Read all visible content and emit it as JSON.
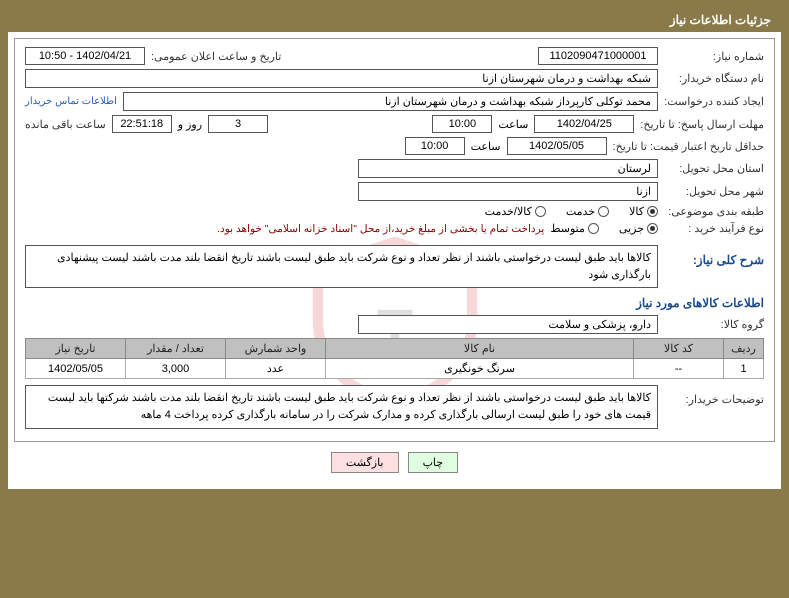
{
  "title": "جزئیات اطلاعات نیاز",
  "labels": {
    "need_no": "شماره نیاز:",
    "announce": "تاریخ و ساعت اعلان عمومی:",
    "buyer": "نام دستگاه خریدار:",
    "creator": "ایجاد کننده درخواست:",
    "contact": "اطلاعات تماس خریدار",
    "deadline": "مهلت ارسال پاسخ: تا تاریخ:",
    "hour": "ساعت",
    "day_and": "روز و",
    "remain": "ساعت باقی مانده",
    "validity": "حداقل تاریخ اعتبار قیمت: تا تاریخ:",
    "province": "استان محل تحویل:",
    "city": "شهر محل تحویل:",
    "category": "طبقه بندی موضوعی:",
    "process": "نوع فرآیند خرید :",
    "desc_title": "شرح کلی نیاز:",
    "items_title": "اطلاعات کالاهای مورد نیاز",
    "group": "گروه کالا:",
    "buyer_note": "توضیحات خریدار:"
  },
  "values": {
    "need_no": "1102090471000001",
    "announce": "1402/04/21 - 10:50",
    "buyer": "شبکه بهداشت و درمان شهرستان ازنا",
    "creator": "محمد توکلی کارپرداز شبکه بهداشت و درمان شهرستان ازنا",
    "deadline_date": "1402/04/25",
    "deadline_time": "10:00",
    "days": "3",
    "countdown": "22:51:18",
    "validity_date": "1402/05/05",
    "validity_time": "10:00",
    "province": "لرستان",
    "city": "ازنا",
    "group": "دارو، پزشکی و سلامت",
    "desc": "کالاها باید طبق لیست درخواستی باشند از نظر تعداد و نوع شرکت باید طبق لیست باشند تاریخ انقضا بلند مدت باشند لیست پیشنهادی بارگذاری شود",
    "buyer_note": "کالاها باید طبق لیست درخواستی باشند از نظر تعداد و نوع شرکت باید طبق لیست باشند تاریخ انقضا بلند مدت باشند شرکتها باید لیست قیمت های خود را طبق لیست ارسالی بارگذاری کرده و مدارک شرکت را در سامانه بارگذاری کرده پرداخت 4 ماهه"
  },
  "radios": {
    "cat": {
      "goods": "کالا",
      "service": "خدمت",
      "both": "کالا/خدمت"
    },
    "proc": {
      "partial": "جزیی",
      "medium": "متوسط",
      "note": "پرداخت تمام یا بخشی از مبلغ خرید،از محل \"اسناد خزانه اسلامی\" خواهد بود."
    }
  },
  "table": {
    "headers": {
      "row": "ردیف",
      "code": "کد کالا",
      "name": "نام کالا",
      "unit": "واحد شمارش",
      "qty": "تعداد / مقدار",
      "date": "تاریخ نیاز"
    },
    "rows": [
      {
        "row": "1",
        "code": "--",
        "name": "سرنگ خونگیری",
        "unit": "عدد",
        "qty": "3,000",
        "date": "1402/05/05"
      }
    ]
  },
  "buttons": {
    "print": "چاپ",
    "back": "بازگشت"
  },
  "colors": {
    "brand": "#8a7a4a",
    "link": "#2a5db0",
    "section": "#1a4a8a",
    "warn": "#8a0000"
  }
}
